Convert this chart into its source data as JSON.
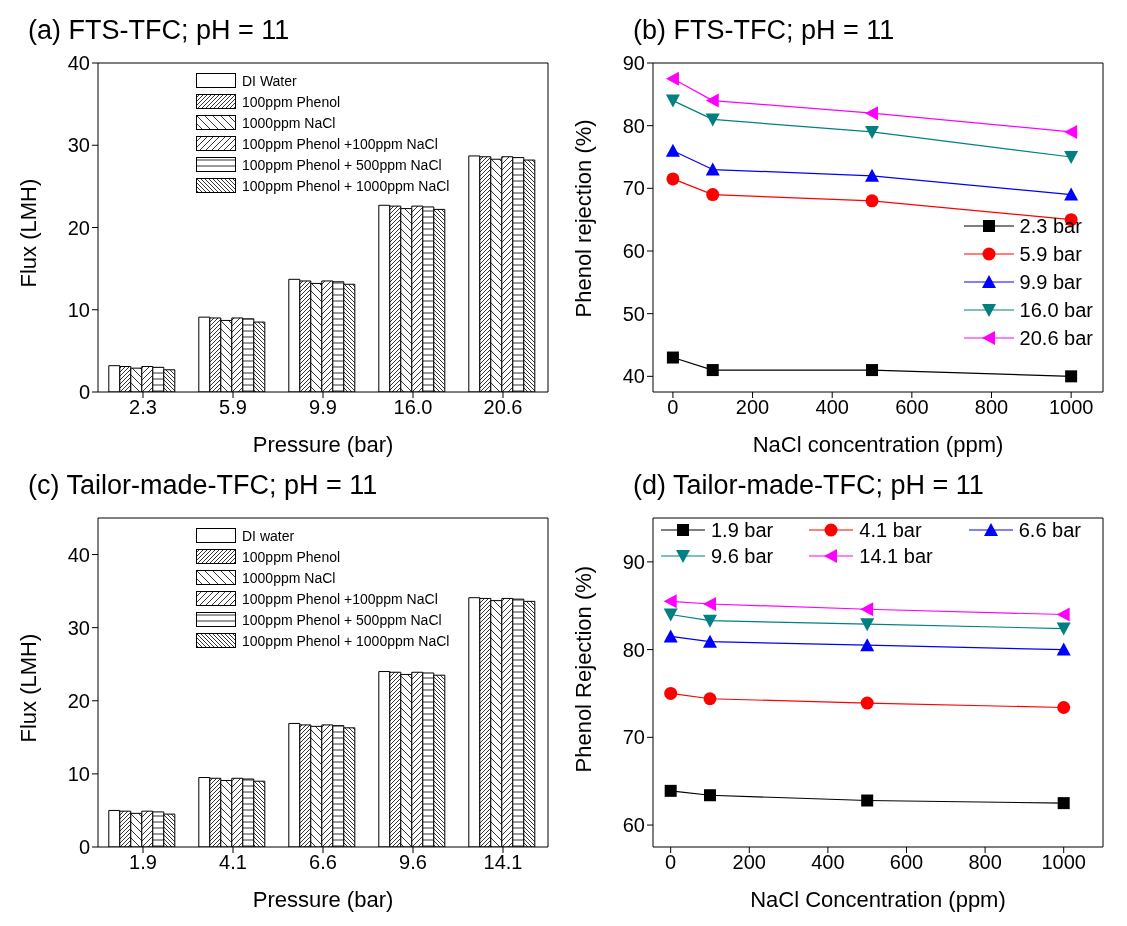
{
  "chart_data": [
    {
      "type": "bar",
      "title": "(a) FTS-TFC; pH = 11",
      "xlabel": "Pressure (bar)",
      "ylabel": "Flux (LMH)",
      "categories": [
        "2.3",
        "5.9",
        "9.9",
        "16.0",
        "20.6"
      ],
      "ylim": [
        0,
        40
      ],
      "yticks": [
        0,
        10,
        20,
        30,
        40
      ],
      "legend": "top left",
      "series": [
        {
          "name": "DI Water",
          "color": "#000000",
          "values": [
            3.2,
            9.1,
            13.7,
            22.7,
            28.7
          ]
        },
        {
          "name": "100ppm Phenol",
          "color": "#000000",
          "values": [
            3.1,
            9.0,
            13.5,
            22.6,
            28.6
          ]
        },
        {
          "name": "1000ppm NaCl",
          "color": "#000000",
          "values": [
            2.9,
            8.7,
            13.2,
            22.3,
            28.3
          ]
        },
        {
          "name": "100ppm Phenol +100ppm NaCl",
          "color": "#000000",
          "values": [
            3.1,
            9.0,
            13.5,
            22.6,
            28.6
          ]
        },
        {
          "name": "100ppm Phenol + 500ppm NaCl",
          "color": "#000000",
          "values": [
            3.0,
            8.9,
            13.4,
            22.5,
            28.5
          ]
        },
        {
          "name": "100ppm Phenol + 1000ppm NaCl",
          "color": "#000000",
          "values": [
            2.7,
            8.5,
            13.1,
            22.2,
            28.2
          ]
        }
      ]
    },
    {
      "type": "line",
      "title": "(b) FTS-TFC; pH = 11",
      "xlabel": "NaCl concentration (ppm)",
      "ylabel": "Phenol rejection (%)",
      "x": [
        0,
        100,
        500,
        1000
      ],
      "xlim": [
        -50,
        1080
      ],
      "xticks": [
        0,
        200,
        400,
        600,
        800,
        1000
      ],
      "ylim": [
        37.5,
        90
      ],
      "yticks": [
        40,
        50,
        60,
        70,
        80,
        90
      ],
      "legend": "bottom right",
      "series": [
        {
          "name": "2.3 bar",
          "color": "#000000",
          "marker": "square",
          "values": [
            43,
            41,
            41,
            40
          ]
        },
        {
          "name": "5.9 bar",
          "color": "#ff0000",
          "marker": "circle",
          "values": [
            71.5,
            69,
            68,
            65
          ]
        },
        {
          "name": "9.9 bar",
          "color": "#0000ff",
          "marker": "triangle",
          "values": [
            76,
            73,
            72,
            69
          ]
        },
        {
          "name": "16.0 bar",
          "color": "#008080",
          "marker": "triangle-down",
          "values": [
            84,
            81,
            79,
            75
          ]
        },
        {
          "name": "20.6 bar",
          "color": "#ff00ff",
          "marker": "triangle-left",
          "values": [
            87.5,
            84,
            82,
            79
          ]
        }
      ]
    },
    {
      "type": "bar",
      "title": "(c) Tailor-made-TFC; pH = 11",
      "xlabel": "Pressure (bar)",
      "ylabel": "Flux (LMH)",
      "categories": [
        "1.9",
        "4.1",
        "6.6",
        "9.6",
        "14.1"
      ],
      "ylim": [
        0,
        45
      ],
      "yticks": [
        0,
        10,
        20,
        30,
        40
      ],
      "legend": "top left",
      "series": [
        {
          "name": "DI water",
          "color": "#000000",
          "values": [
            5.0,
            9.5,
            16.9,
            24.0,
            34.1
          ]
        },
        {
          "name": "100ppm Phenol",
          "color": "#000000",
          "values": [
            4.9,
            9.4,
            16.7,
            23.9,
            34.0
          ]
        },
        {
          "name": "1000ppm NaCl",
          "color": "#000000",
          "values": [
            4.6,
            9.1,
            16.5,
            23.6,
            33.7
          ]
        },
        {
          "name": "100ppm Phenol +100ppm NaCl",
          "color": "#000000",
          "values": [
            4.9,
            9.4,
            16.7,
            23.9,
            34.0
          ]
        },
        {
          "name": "100ppm Phenol + 500ppm NaCl",
          "color": "#000000",
          "values": [
            4.8,
            9.3,
            16.6,
            23.8,
            33.9
          ]
        },
        {
          "name": "100ppm Phenol + 1000ppm NaCl",
          "color": "#000000",
          "values": [
            4.5,
            9.0,
            16.3,
            23.5,
            33.6
          ]
        }
      ]
    },
    {
      "type": "line",
      "title": "(d) Tailor-made-TFC; pH = 11",
      "xlabel": "NaCl Concentration (ppm)",
      "ylabel": "Phenol Rejection (%)",
      "x": [
        0,
        100,
        500,
        1000
      ],
      "xlim": [
        -45,
        1100
      ],
      "xticks": [
        0,
        200,
        400,
        600,
        800,
        1000
      ],
      "ylim": [
        57.5,
        95
      ],
      "yticks": [
        60,
        70,
        80,
        90
      ],
      "legend": "top",
      "series": [
        {
          "name": "1.9 bar",
          "color": "#000000",
          "marker": "square",
          "values": [
            63.9,
            63.4,
            62.8,
            62.5
          ]
        },
        {
          "name": "4.1 bar",
          "color": "#ff0000",
          "marker": "circle",
          "values": [
            75.0,
            74.4,
            73.9,
            73.4
          ]
        },
        {
          "name": "6.6 bar",
          "color": "#0000ff",
          "marker": "triangle",
          "values": [
            81.5,
            80.9,
            80.5,
            80.0
          ]
        },
        {
          "name": "9.6 bar",
          "color": "#008080",
          "marker": "triangle-down",
          "values": [
            84.0,
            83.3,
            82.9,
            82.4
          ]
        },
        {
          "name": "14.1 bar",
          "color": "#ff00ff",
          "marker": "triangle-left",
          "values": [
            85.5,
            85.2,
            84.6,
            84.0
          ]
        }
      ]
    }
  ]
}
